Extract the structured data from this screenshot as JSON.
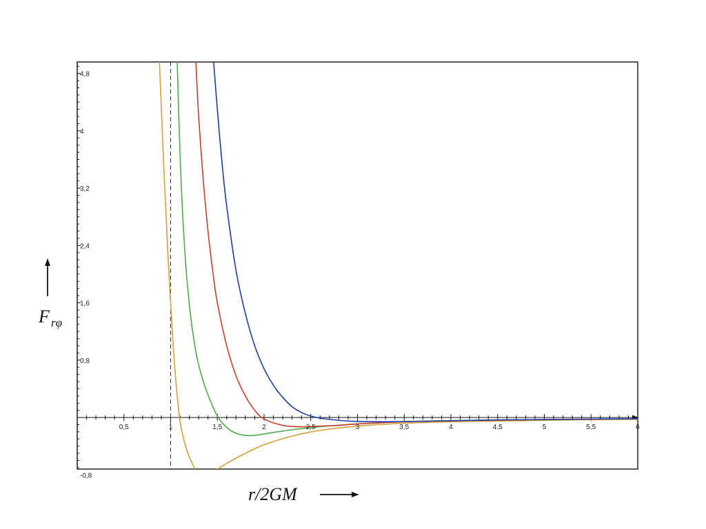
{
  "chart_data": {
    "type": "line",
    "title": "",
    "xlabel": "r/2GM",
    "ylabel_main": "F",
    "ylabel_sub": "rφ",
    "xlim": [
      0,
      6
    ],
    "ylim": [
      -0.72,
      4.96
    ],
    "x_ticks": [
      {
        "v": 0.5,
        "label": "0,5"
      },
      {
        "v": 1,
        "label": "1"
      },
      {
        "v": 1.5,
        "label": "1,5"
      },
      {
        "v": 2,
        "label": "2"
      },
      {
        "v": 2.5,
        "label": "2,5"
      },
      {
        "v": 3,
        "label": "3"
      },
      {
        "v": 3.5,
        "label": "3,5"
      },
      {
        "v": 4,
        "label": "4"
      },
      {
        "v": 4.5,
        "label": "4,5"
      },
      {
        "v": 5,
        "label": "5"
      },
      {
        "v": 5.5,
        "label": "5,5"
      },
      {
        "v": 6,
        "label": "6"
      }
    ],
    "y_ticks": [
      {
        "v": 4.8,
        "label": "4,8"
      },
      {
        "v": 4,
        "label": "4"
      },
      {
        "v": 3.2,
        "label": "3,2"
      },
      {
        "v": 2.4,
        "label": "2,4"
      },
      {
        "v": 1.6,
        "label": "1,6"
      },
      {
        "v": 0.8,
        "label": "0,8"
      },
      {
        "v": -0.8,
        "label": "-0,8"
      }
    ],
    "vertical_reference_line": {
      "x": 1,
      "style": "dashed"
    },
    "grid": false,
    "series": [
      {
        "color": "#d4a03a",
        "x": [
          0.88,
          0.93,
          0.97,
          1.0,
          1.03,
          1.06,
          1.1,
          1.15,
          1.2,
          1.27,
          1.35,
          1.45,
          1.6,
          1.8,
          2.0,
          2.3,
          2.6,
          3.0,
          3.5,
          4.0,
          4.5,
          5.0,
          5.5,
          6.0
        ],
        "y": [
          4.96,
          3.4,
          2.3,
          1.6,
          0.95,
          0.45,
          -0.05,
          -0.35,
          -0.55,
          -0.73,
          -0.8,
          -0.76,
          -0.64,
          -0.5,
          -0.38,
          -0.26,
          -0.18,
          -0.12,
          -0.08,
          -0.06,
          -0.05,
          -0.04,
          -0.03,
          -0.025
        ]
      },
      {
        "color": "#4daa4a",
        "x": [
          1.07,
          1.1,
          1.13,
          1.17,
          1.22,
          1.28,
          1.35,
          1.42,
          1.5,
          1.6,
          1.7,
          1.8,
          1.9,
          2.0,
          2.2,
          2.5,
          3.0,
          3.5,
          4.0,
          4.5,
          5.0,
          5.5,
          6.0
        ],
        "y": [
          4.96,
          3.7,
          2.8,
          2.0,
          1.35,
          0.85,
          0.5,
          0.25,
          0.02,
          -0.14,
          -0.22,
          -0.25,
          -0.25,
          -0.23,
          -0.19,
          -0.14,
          -0.09,
          -0.06,
          -0.045,
          -0.035,
          -0.03,
          -0.025,
          -0.02
        ]
      },
      {
        "color": "#cc3b2a",
        "x": [
          1.27,
          1.3,
          1.35,
          1.4,
          1.45,
          1.5,
          1.6,
          1.7,
          1.8,
          1.9,
          2.0,
          2.2,
          2.4,
          2.6,
          2.8,
          3.0,
          3.5,
          4.0,
          4.5,
          5.0,
          5.5,
          6.0
        ],
        "y": [
          4.96,
          4.2,
          3.3,
          2.6,
          2.05,
          1.6,
          1.0,
          0.58,
          0.3,
          0.1,
          -0.02,
          -0.11,
          -0.13,
          -0.12,
          -0.11,
          -0.09,
          -0.06,
          -0.045,
          -0.035,
          -0.03,
          -0.025,
          -0.02
        ]
      },
      {
        "color": "#1d3aa8",
        "x": [
          1.46,
          1.5,
          1.55,
          1.6,
          1.7,
          1.8,
          1.9,
          2.0,
          2.1,
          2.2,
          2.3,
          2.4,
          2.5,
          2.6,
          2.8,
          3.0,
          3.3,
          3.6,
          4.0,
          4.5,
          5.0,
          5.5,
          6.0
        ],
        "y": [
          4.96,
          4.3,
          3.55,
          2.95,
          2.05,
          1.45,
          1.0,
          0.68,
          0.45,
          0.28,
          0.15,
          0.07,
          0.02,
          -0.01,
          -0.04,
          -0.055,
          -0.06,
          -0.055,
          -0.045,
          -0.035,
          -0.028,
          -0.022,
          -0.018
        ]
      }
    ]
  }
}
